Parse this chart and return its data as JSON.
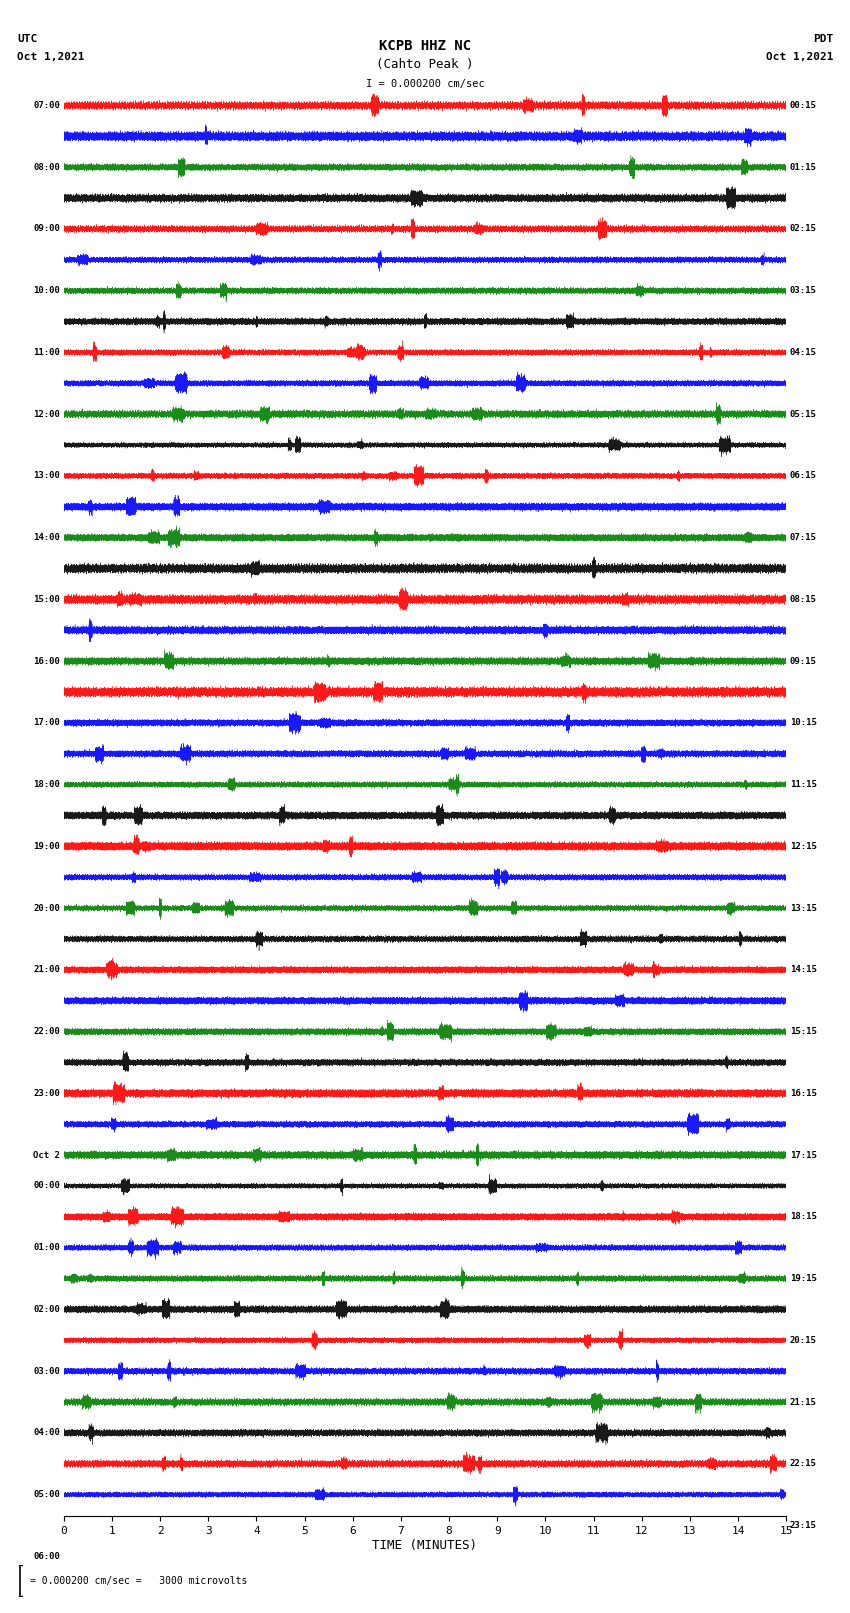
{
  "title_line1": "KCPB HHZ NC",
  "title_line2": "(Cahto Peak )",
  "title_line3": "I = 0.000200 cm/sec",
  "left_top_label1": "UTC",
  "left_top_label2": "Oct 1,2021",
  "right_top_label1": "PDT",
  "right_top_label2": "Oct 1,2021",
  "bottom_label": "TIME (MINUTES)",
  "scale_label": "= 0.000200 cm/sec =   3000 microvolts",
  "x_ticks": [
    0,
    1,
    2,
    3,
    4,
    5,
    6,
    7,
    8,
    9,
    10,
    11,
    12,
    13,
    14,
    15
  ],
  "left_times": [
    "07:00",
    "",
    "08:00",
    "",
    "09:00",
    "",
    "10:00",
    "",
    "11:00",
    "",
    "12:00",
    "",
    "13:00",
    "",
    "14:00",
    "",
    "15:00",
    "",
    "16:00",
    "",
    "17:00",
    "",
    "18:00",
    "",
    "19:00",
    "",
    "20:00",
    "",
    "21:00",
    "",
    "22:00",
    "",
    "23:00",
    "",
    "Oct 2",
    "00:00",
    "",
    "01:00",
    "",
    "02:00",
    "",
    "03:00",
    "",
    "04:00",
    "",
    "05:00",
    "",
    "06:00",
    ""
  ],
  "right_times": [
    "00:15",
    "",
    "01:15",
    "",
    "02:15",
    "",
    "03:15",
    "",
    "04:15",
    "",
    "05:15",
    "",
    "06:15",
    "",
    "07:15",
    "",
    "08:15",
    "",
    "09:15",
    "",
    "10:15",
    "",
    "11:15",
    "",
    "12:15",
    "",
    "13:15",
    "",
    "14:15",
    "",
    "15:15",
    "",
    "16:15",
    "",
    "17:15",
    "",
    "18:15",
    "",
    "19:15",
    "",
    "20:15",
    "",
    "21:15",
    "",
    "22:15",
    "",
    "23:15",
    ""
  ],
  "num_traces": 46,
  "trace_duration_minutes": 15,
  "sample_rate": 100,
  "colors": [
    "red",
    "blue",
    "green",
    "black"
  ],
  "bg_color": "white",
  "amplitude_scale": 0.38,
  "special_trace_indices": [
    20,
    21
  ],
  "special_color": "blue",
  "special_amplitude": 2.8,
  "event_trace_index": 19,
  "event_color": "red"
}
